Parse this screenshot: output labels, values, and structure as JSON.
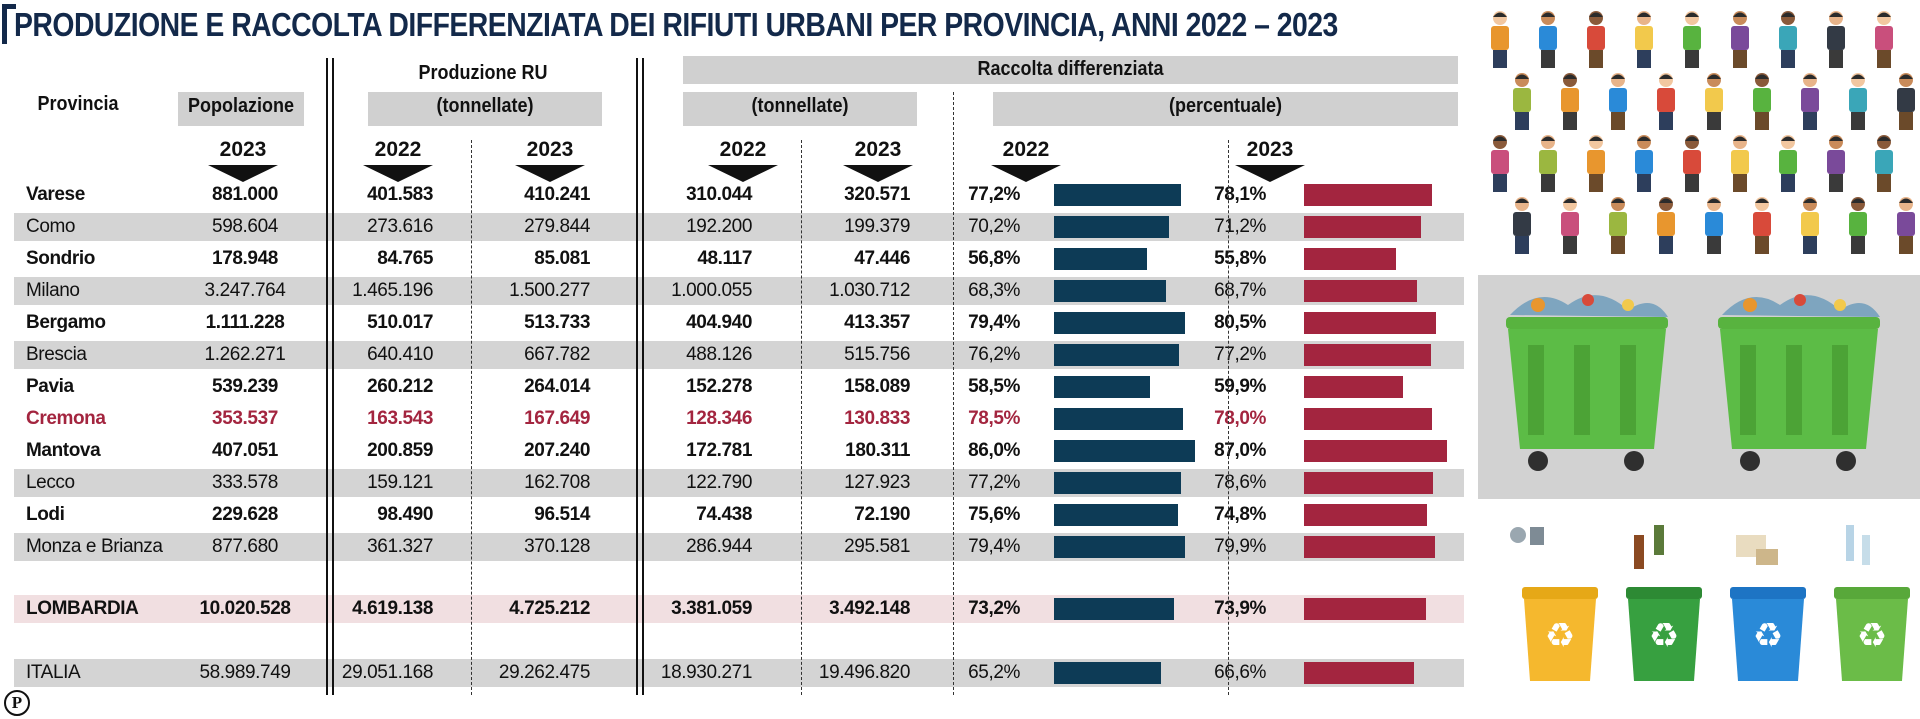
{
  "title": "PRODUZIONE E RACCOLTA DIFFERENZIATA DEI RIFIUTI URBANI PER PROVINCIA, ANNI 2022 – 2023",
  "headers": {
    "provincia": "Provincia",
    "popolazione": "Popolazione",
    "produzione_title": "Produzione RU",
    "produzione_unit": "(tonnellate)",
    "raccolta_title": "Raccolta differenziata",
    "raccolta_ton": "(tonnellate)",
    "raccolta_pct": "(percentuale)",
    "year_2023": "2023",
    "year_2022": "2022"
  },
  "colors": {
    "bar_2022": "#0d3b56",
    "bar_2023": "#a3253f",
    "highlight_text": "#a3253f",
    "title": "#13294a"
  },
  "chart_data": {
    "type": "table",
    "title": "PRODUZIONE E RACCOLTA DIFFERENZIATA DEI RIFIUTI URBANI PER PROVINCIA, ANNI 2022 – 2023",
    "columns": [
      "Provincia",
      "Popolazione 2023",
      "Produzione RU 2022",
      "Produzione RU 2023",
      "RD tonnellate 2022",
      "RD tonnellate 2023",
      "RD % 2022",
      "RD % 2023"
    ],
    "rows": [
      {
        "provincia": "Varese",
        "pop": "881.000",
        "pr22": "401.583",
        "pr23": "410.241",
        "rd22": "310.044",
        "rd23": "320.571",
        "pct22": "77,2%",
        "pct23": "78,1%",
        "v22": 77.2,
        "v23": 78.1,
        "style": "bold"
      },
      {
        "provincia": "Como",
        "pop": "598.604",
        "pr22": "273.616",
        "pr23": "279.844",
        "rd22": "192.200",
        "rd23": "199.379",
        "pct22": "70,2%",
        "pct23": "71,2%",
        "v22": 70.2,
        "v23": 71.2,
        "style": "normal"
      },
      {
        "provincia": "Sondrio",
        "pop": "178.948",
        "pr22": "84.765",
        "pr23": "85.081",
        "rd22": "48.117",
        "rd23": "47.446",
        "pct22": "56,8%",
        "pct23": "55,8%",
        "v22": 56.8,
        "v23": 55.8,
        "style": "bold"
      },
      {
        "provincia": "Milano",
        "pop": "3.247.764",
        "pr22": "1.465.196",
        "pr23": "1.500.277",
        "rd22": "1.000.055",
        "rd23": "1.030.712",
        "pct22": "68,3%",
        "pct23": "68,7%",
        "v22": 68.3,
        "v23": 68.7,
        "style": "normal"
      },
      {
        "provincia": "Bergamo",
        "pop": "1.111.228",
        "pr22": "510.017",
        "pr23": "513.733",
        "rd22": "404.940",
        "rd23": "413.357",
        "pct22": "79,4%",
        "pct23": "80,5%",
        "v22": 79.4,
        "v23": 80.5,
        "style": "bold"
      },
      {
        "provincia": "Brescia",
        "pop": "1.262.271",
        "pr22": "640.410",
        "pr23": "667.782",
        "rd22": "488.126",
        "rd23": "515.756",
        "pct22": "76,2%",
        "pct23": "77,2%",
        "v22": 76.2,
        "v23": 77.2,
        "style": "normal"
      },
      {
        "provincia": "Pavia",
        "pop": "539.239",
        "pr22": "260.212",
        "pr23": "264.014",
        "rd22": "152.278",
        "rd23": "158.089",
        "pct22": "58,5%",
        "pct23": "59,9%",
        "v22": 58.5,
        "v23": 59.9,
        "style": "bold"
      },
      {
        "provincia": "Cremona",
        "pop": "353.537",
        "pr22": "163.543",
        "pr23": "167.649",
        "rd22": "128.346",
        "rd23": "130.833",
        "pct22": "78,5%",
        "pct23": "78,0%",
        "v22": 78.5,
        "v23": 78.0,
        "style": "highlight"
      },
      {
        "provincia": "Mantova",
        "pop": "407.051",
        "pr22": "200.859",
        "pr23": "207.240",
        "rd22": "172.781",
        "rd23": "180.311",
        "pct22": "86,0%",
        "pct23": "87,0%",
        "v22": 86.0,
        "v23": 87.0,
        "style": "bold"
      },
      {
        "provincia": "Lecco",
        "pop": "333.578",
        "pr22": "159.121",
        "pr23": "162.708",
        "rd22": "122.790",
        "rd23": "127.923",
        "pct22": "77,2%",
        "pct23": "78,6%",
        "v22": 77.2,
        "v23": 78.6,
        "style": "normal"
      },
      {
        "provincia": "Lodi",
        "pop": "229.628",
        "pr22": "98.490",
        "pr23": "96.514",
        "rd22": "74.438",
        "rd23": "72.190",
        "pct22": "75,6%",
        "pct23": "74,8%",
        "v22": 75.6,
        "v23": 74.8,
        "style": "bold"
      },
      {
        "provincia": "Monza e Brianza",
        "pop": "877.680",
        "pr22": "361.327",
        "pr23": "370.128",
        "rd22": "286.944",
        "rd23": "295.581",
        "pct22": "79,4%",
        "pct23": "79,9%",
        "v22": 79.4,
        "v23": 79.9,
        "style": "normal"
      }
    ],
    "totals": [
      {
        "provincia": "LOMBARDIA",
        "pop": "10.020.528",
        "pr22": "4.619.138",
        "pr23": "4.725.212",
        "rd22": "3.381.059",
        "rd23": "3.492.148",
        "pct22": "73,2%",
        "pct23": "73,9%",
        "v22": 73.2,
        "v23": 73.9,
        "style": "lombardia"
      },
      {
        "provincia": "ITALIA",
        "pop": "58.989.749",
        "pr22": "29.051.168",
        "pr23": "29.262.475",
        "rd22": "18.930.271",
        "rd23": "19.496.820",
        "pct22": "65,2%",
        "pct23": "66,6%",
        "v22": 65.2,
        "v23": 66.6,
        "style": "italia"
      }
    ],
    "bar_scale_max": 100
  }
}
